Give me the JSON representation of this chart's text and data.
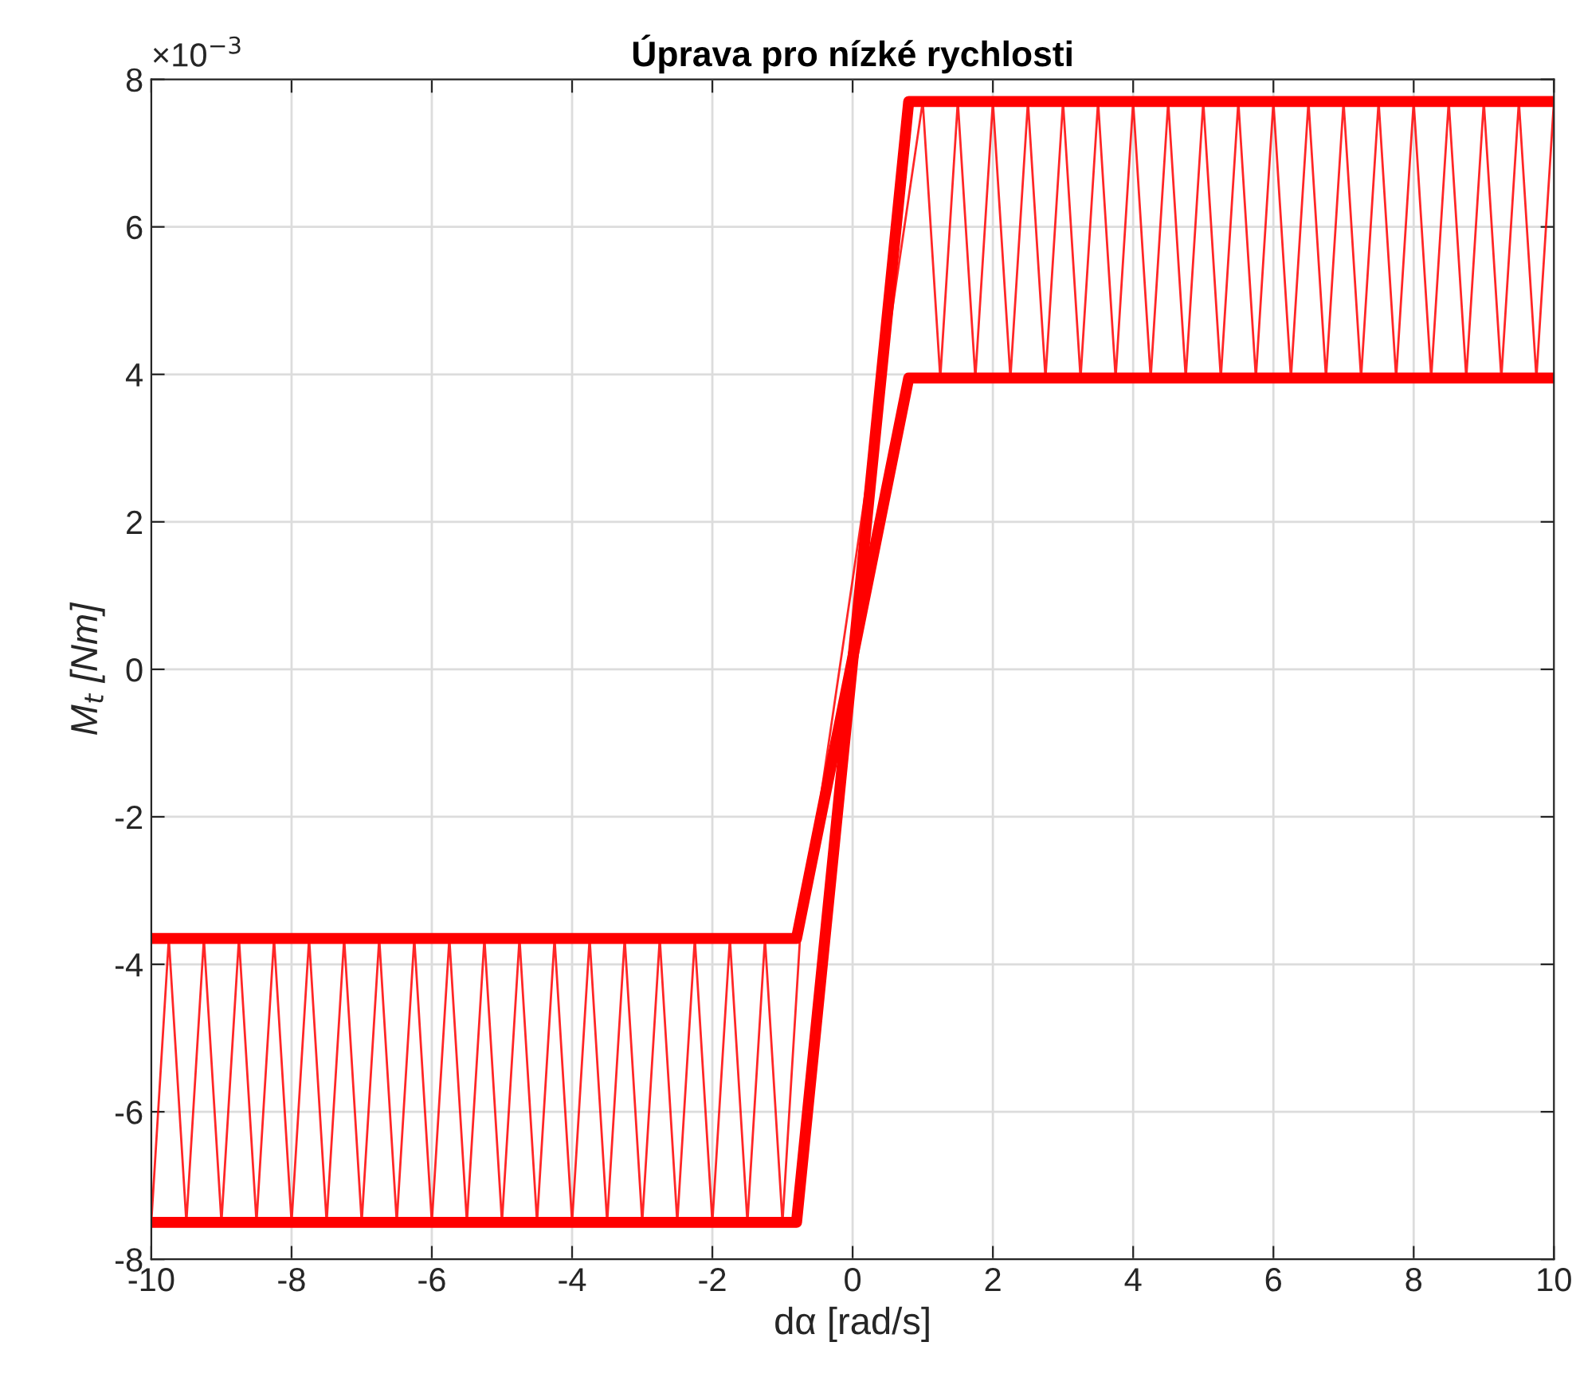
{
  "chart_data": {
    "type": "line",
    "title": "Úprava pro nízké rychlosti",
    "xlabel": "dα [rad/s]",
    "ylabel": "M$_{t}$ [Nm]",
    "annotations": [
      "×10$^{−3}$"
    ],
    "xlim": [
      -10,
      10
    ],
    "xticks": [
      -10,
      -8,
      -6,
      -4,
      -2,
      0,
      2,
      4,
      6,
      8,
      10
    ],
    "ylim": [
      -8,
      8
    ],
    "yticks": [
      -8,
      -6,
      -4,
      -2,
      0,
      2,
      4,
      6,
      8
    ],
    "grid": true,
    "legend": false,
    "line_style": "solid",
    "marker": "none",
    "series": [
      {
        "color": "#ff0000",
        "x": [
          -10,
          -9.75,
          -9.5,
          -9.25,
          -9,
          -8.75,
          -8.5,
          -8.25,
          -8,
          -7.75,
          -7.5,
          -7.25,
          -7,
          -6.75,
          -6.5,
          -6.25,
          -6,
          -5.75,
          -5.5,
          -5.25,
          -5,
          -4.75,
          -4.5,
          -4.25,
          -4,
          -3.75,
          -3.5,
          -3.25,
          -3,
          -2.75,
          -2.5,
          -2.25,
          -2,
          -1.75,
          -1.5,
          -1.25,
          -1,
          -0.75,
          1,
          1.25,
          1.5,
          1.75,
          2,
          2.25,
          2.5,
          2.75,
          3,
          3.25,
          3.5,
          3.75,
          4,
          4.25,
          4.5,
          4.75,
          5,
          5.25,
          5.5,
          5.75,
          6,
          6.25,
          6.5,
          6.75,
          7,
          7.25,
          7.5,
          7.75,
          8,
          8.25,
          8.5,
          8.75,
          9,
          9.25,
          9.5,
          9.75,
          10
        ],
        "values": [
          -7.5,
          -3.65,
          -7.5,
          -3.65,
          -7.5,
          -3.65,
          -7.5,
          -3.65,
          -7.5,
          -3.65,
          -7.5,
          -3.65,
          -7.5,
          -3.65,
          -7.5,
          -3.65,
          -7.5,
          -3.65,
          -7.5,
          -3.65,
          -7.5,
          -3.65,
          -7.5,
          -3.65,
          -7.5,
          -3.65,
          -7.5,
          -3.65,
          -7.5,
          -3.65,
          -7.5,
          -3.65,
          -7.5,
          -3.65,
          -7.5,
          -3.65,
          -7.5,
          -3.65,
          7.7,
          3.95,
          7.7,
          3.95,
          7.7,
          3.95,
          7.7,
          3.95,
          7.7,
          3.95,
          7.7,
          3.95,
          7.7,
          3.95,
          7.7,
          3.95,
          7.7,
          3.95,
          7.7,
          3.95,
          7.7,
          3.95,
          7.7,
          3.95,
          7.7,
          3.95,
          7.7,
          3.95,
          7.7,
          3.95,
          7.7,
          3.95,
          7.7,
          3.95,
          7.7,
          3.95,
          7.7
        ]
      },
      {
        "color": "#ff0000",
        "x": [
          -10,
          -0.8,
          0.8,
          10
        ],
        "values": [
          -7.5,
          -7.5,
          7.7,
          7.7
        ]
      },
      {
        "color": "#ff0000",
        "x": [
          10,
          0.8,
          -0.8,
          -10
        ],
        "values": [
          3.95,
          3.95,
          -3.65,
          -3.65
        ]
      }
    ]
  }
}
